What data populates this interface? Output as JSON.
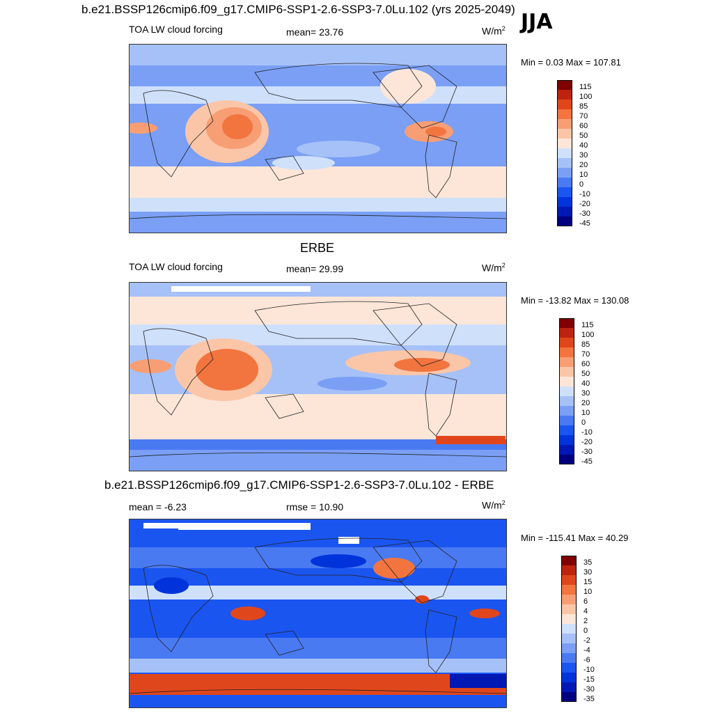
{
  "main_title": "b.e21.BSSP126cmip6.f09_g17.CMIP6-SSP1-2.6-SSP3-7.0Lu.102 (yrs 2025-2049)",
  "season": "JJA",
  "colors": {
    "abs_scale": [
      "#00007f",
      "#0018b4",
      "#0034da",
      "#1a55f0",
      "#4a7af2",
      "#7a9ff5",
      "#a6c1f7",
      "#cfe0fb",
      "#fde6d8",
      "#fbc6a8",
      "#f89e74",
      "#f2743f",
      "#e0461b",
      "#bd2410",
      "#7f0000"
    ],
    "diff_scale": [
      "#00007f",
      "#0018b4",
      "#0034da",
      "#1a55f0",
      "#4a7af2",
      "#7a9ff5",
      "#a6c1f7",
      "#cfe0fb",
      "#fde6d8",
      "#fbc6a8",
      "#f89e74",
      "#f2743f",
      "#e0461b",
      "#bd2410",
      "#7f0000"
    ]
  },
  "panels": [
    {
      "name": "model",
      "subtitle": "",
      "left_label": "TOA LW cloud forcing",
      "center_label": "mean=  23.76",
      "units": "W/m",
      "units_sup": "2",
      "minmax": "Min =   0.03 Max = 107.81",
      "colorbar_ticks": [
        "115",
        "100",
        "85",
        "70",
        "60",
        "50",
        "40",
        "30",
        "20",
        "10",
        "0",
        "-10",
        "-20",
        "-30",
        "-45"
      ]
    },
    {
      "name": "obs",
      "subtitle": "ERBE",
      "left_label": "TOA LW cloud forcing",
      "center_label": "mean=  29.99",
      "units": "W/m",
      "units_sup": "2",
      "minmax": "Min = -13.82 Max = 130.08",
      "colorbar_ticks": [
        "115",
        "100",
        "85",
        "70",
        "60",
        "50",
        "40",
        "30",
        "20",
        "10",
        "0",
        "-10",
        "-20",
        "-30",
        "-45"
      ]
    },
    {
      "name": "diff",
      "subtitle": "b.e21.BSSP126cmip6.f09_g17.CMIP6-SSP1-2.6-SSP3-7.0Lu.102 - ERBE",
      "left_label": "mean =  -6.23",
      "center_label": "rmse =  10.90",
      "units": "W/m",
      "units_sup": "2",
      "minmax": "Min = -115.41 Max =  40.29",
      "colorbar_ticks": [
        "35",
        "30",
        "15",
        "10",
        "6",
        "4",
        "2",
        "0",
        "-2",
        "-4",
        "-6",
        "-10",
        "-15",
        "-30",
        "-35"
      ]
    }
  ]
}
